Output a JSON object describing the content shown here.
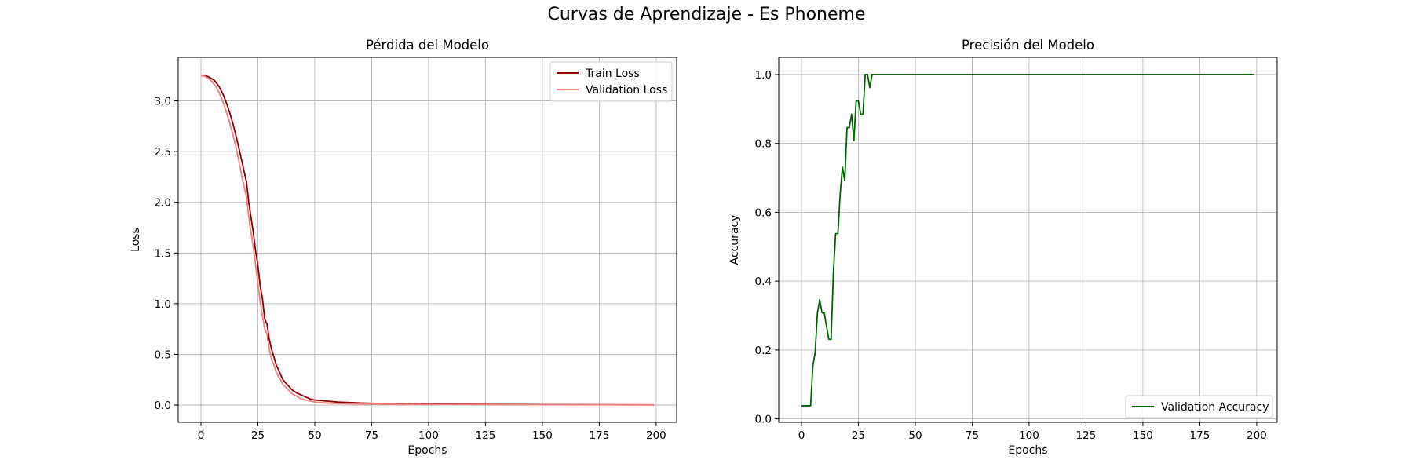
{
  "figure": {
    "title": "Curvas de Aprendizaje - Es Phoneme"
  },
  "chart_data": [
    {
      "type": "line",
      "title": "Pérdida del Modelo",
      "xlabel": "Epochs",
      "ylabel": "Loss",
      "xlim": [
        -10,
        209
      ],
      "ylim": [
        -0.17,
        3.43
      ],
      "xticks": [
        0,
        25,
        50,
        75,
        100,
        125,
        150,
        175,
        200
      ],
      "yticks": [
        0.0,
        0.5,
        1.0,
        1.5,
        2.0,
        2.5,
        3.0
      ],
      "ytick_labels": [
        "0.0",
        "0.5",
        "1.0",
        "1.5",
        "2.0",
        "2.5",
        "3.0"
      ],
      "grid": true,
      "legend_position": "top-right",
      "series": [
        {
          "name": "Train Loss",
          "color": "#8b0000",
          "x": [
            0,
            2,
            4,
            6,
            8,
            10,
            12,
            14,
            16,
            18,
            20,
            21,
            22,
            23,
            24,
            25,
            26,
            27,
            28,
            29,
            30,
            31,
            32,
            33,
            34,
            35,
            36,
            38,
            40,
            42,
            44,
            46,
            48,
            50,
            55,
            60,
            70,
            80,
            100,
            125,
            150,
            175,
            199
          ],
          "values": [
            3.25,
            3.25,
            3.23,
            3.2,
            3.14,
            3.05,
            2.93,
            2.78,
            2.6,
            2.4,
            2.2,
            2.0,
            1.85,
            1.7,
            1.52,
            1.38,
            1.18,
            1.05,
            0.85,
            0.8,
            0.65,
            0.55,
            0.48,
            0.4,
            0.35,
            0.3,
            0.25,
            0.2,
            0.15,
            0.12,
            0.1,
            0.08,
            0.06,
            0.05,
            0.04,
            0.03,
            0.02,
            0.015,
            0.01,
            0.007,
            0.005,
            0.003,
            0.002
          ]
        },
        {
          "name": "Validation Loss",
          "color": "#f08080",
          "x": [
            0,
            2,
            4,
            6,
            8,
            10,
            12,
            14,
            16,
            18,
            20,
            21,
            22,
            23,
            24,
            25,
            26,
            27,
            28,
            29,
            30,
            31,
            32,
            33,
            34,
            35,
            36,
            38,
            40,
            42,
            44,
            46,
            48,
            50,
            55,
            60,
            70,
            80,
            100,
            125,
            150,
            175,
            199
          ],
          "values": [
            3.25,
            3.24,
            3.21,
            3.16,
            3.08,
            2.97,
            2.83,
            2.67,
            2.48,
            2.25,
            2.05,
            1.85,
            1.7,
            1.55,
            1.38,
            1.2,
            1.02,
            0.88,
            0.75,
            0.7,
            0.55,
            0.45,
            0.4,
            0.33,
            0.28,
            0.25,
            0.2,
            0.16,
            0.11,
            0.09,
            0.06,
            0.05,
            0.04,
            0.03,
            0.02,
            0.015,
            0.01,
            0.008,
            0.006,
            0.004,
            0.003,
            0.002,
            0.001
          ]
        }
      ]
    },
    {
      "type": "line",
      "title": "Precisión del Modelo",
      "xlabel": "Epochs",
      "ylabel": "Accuracy",
      "xlim": [
        -10,
        209
      ],
      "ylim": [
        -0.01,
        1.05
      ],
      "xticks": [
        0,
        25,
        50,
        75,
        100,
        125,
        150,
        175,
        200
      ],
      "yticks": [
        0.0,
        0.2,
        0.4,
        0.6,
        0.8,
        1.0
      ],
      "ytick_labels": [
        "0.0",
        "0.2",
        "0.4",
        "0.6",
        "0.8",
        "1.0"
      ],
      "grid": true,
      "legend_position": "bottom-right",
      "series": [
        {
          "name": "Validation Accuracy",
          "color": "#006400",
          "x": [
            0,
            1,
            2,
            3,
            4,
            5,
            6,
            7,
            8,
            9,
            10,
            11,
            12,
            13,
            14,
            15,
            16,
            17,
            18,
            19,
            20,
            21,
            22,
            23,
            24,
            25,
            26,
            27,
            28,
            29,
            30,
            31,
            32,
            33,
            35,
            40,
            50,
            100,
            150,
            199
          ],
          "values": [
            0.038,
            0.038,
            0.038,
            0.038,
            0.038,
            0.154,
            0.192,
            0.308,
            0.346,
            0.308,
            0.308,
            0.269,
            0.231,
            0.231,
            0.423,
            0.538,
            0.538,
            0.654,
            0.731,
            0.692,
            0.846,
            0.846,
            0.885,
            0.808,
            0.923,
            0.923,
            0.885,
            0.885,
            1.0,
            1.0,
            0.962,
            1.0,
            1.0,
            1.0,
            1.0,
            1.0,
            1.0,
            1.0,
            1.0,
            1.0
          ]
        }
      ]
    }
  ]
}
